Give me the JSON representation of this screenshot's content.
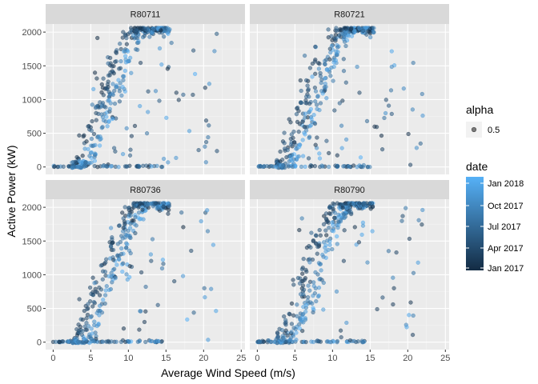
{
  "chart_data": {
    "type": "scatter",
    "xlabel": "Average Wind Speed (m/s)",
    "ylabel": "Active Power (kW)",
    "xlim": [
      -1,
      25.5
    ],
    "ylim": [
      -110,
      2120
    ],
    "x_ticks": [
      0,
      5,
      10,
      15,
      20,
      25
    ],
    "y_ticks": [
      0,
      500,
      1000,
      1500,
      2000
    ],
    "grid": true,
    "panels": [
      {
        "name": "R80711"
      },
      {
        "name": "R80721"
      },
      {
        "name": "R80736"
      },
      {
        "name": "R80790"
      }
    ],
    "legend": {
      "placement": "right",
      "alpha": {
        "title": "alpha",
        "label": "0.5"
      },
      "date": {
        "title": "date",
        "labels": [
          "Jan 2018",
          "Oct 2017",
          "Jul 2017",
          "Apr 2017",
          "Jan 2017"
        ],
        "color_low": "#132B43",
        "color_high": "#56B1F7"
      }
    }
  },
  "colors": {
    "panel_bg": "#ebebeb",
    "strip_bg": "#d9d9d9",
    "point_dark": "#132B43",
    "point_light": "#56B1F7"
  }
}
